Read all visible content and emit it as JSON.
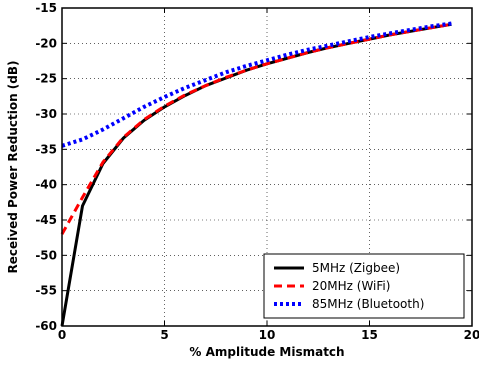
{
  "chart_data": {
    "type": "line",
    "title": "",
    "xlabel": "% Amplitude Mismatch",
    "ylabel": "Received Power Reduction (dB)",
    "xlim": [
      0,
      20
    ],
    "ylim": [
      -60,
      -15
    ],
    "xticks": [
      0,
      5,
      10,
      15,
      20
    ],
    "yticks": [
      -60,
      -55,
      -50,
      -45,
      -40,
      -35,
      -30,
      -25,
      -20,
      -15
    ],
    "grid": true,
    "legend_position": "lower-right",
    "series": [
      {
        "name": "5MHz (Zigbee)",
        "color": "#000000",
        "line_style": "solid",
        "x": [
          0,
          1,
          2,
          3,
          4,
          5,
          6,
          7,
          8,
          9,
          10,
          11,
          12,
          13,
          14,
          15,
          16,
          17,
          18,
          19
        ],
        "y": [
          -60,
          -43.0,
          -37.0,
          -33.4,
          -30.9,
          -29.0,
          -27.4,
          -26.0,
          -24.9,
          -23.8,
          -22.9,
          -22.1,
          -21.3,
          -20.6,
          -20.0,
          -19.4,
          -18.8,
          -18.3,
          -17.8,
          -17.3
        ]
      },
      {
        "name": "20MHz (WiFi)",
        "color": "#ff0000",
        "line_style": "dashed",
        "x": [
          0,
          1,
          2,
          3,
          4,
          5,
          6,
          7,
          8,
          9,
          10,
          11,
          12,
          13,
          14,
          15,
          16,
          17,
          18,
          19
        ],
        "y": [
          -47.0,
          -41.8,
          -36.8,
          -33.3,
          -30.8,
          -28.9,
          -27.3,
          -26.0,
          -24.8,
          -23.8,
          -22.9,
          -22.1,
          -21.3,
          -20.6,
          -20.0,
          -19.4,
          -18.8,
          -18.3,
          -17.8,
          -17.3
        ]
      },
      {
        "name": "85MHz (Bluetooth)",
        "color": "#0000ff",
        "line_style": "dotted",
        "x": [
          0,
          1,
          2,
          3,
          4,
          5,
          6,
          7,
          8,
          9,
          10,
          11,
          12,
          13,
          14,
          15,
          16,
          17,
          18,
          19
        ],
        "y": [
          -34.5,
          -33.6,
          -32.2,
          -30.6,
          -29.0,
          -27.6,
          -26.3,
          -25.2,
          -24.1,
          -23.2,
          -22.4,
          -21.6,
          -20.9,
          -20.3,
          -19.7,
          -19.1,
          -18.6,
          -18.1,
          -17.6,
          -17.2
        ]
      }
    ]
  }
}
